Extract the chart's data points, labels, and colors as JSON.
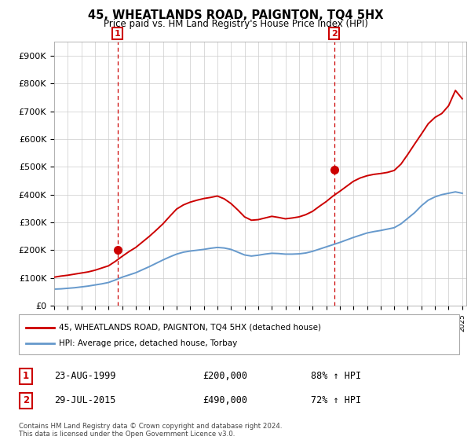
{
  "title": "45, WHEATLANDS ROAD, PAIGNTON, TQ4 5HX",
  "subtitle": "Price paid vs. HM Land Registry's House Price Index (HPI)",
  "legend_line1": "45, WHEATLANDS ROAD, PAIGNTON, TQ4 5HX (detached house)",
  "legend_line2": "HPI: Average price, detached house, Torbay",
  "footer": "Contains HM Land Registry data © Crown copyright and database right 2024.\nThis data is licensed under the Open Government Licence v3.0.",
  "sale1_date": "23-AUG-1999",
  "sale1_price": "£200,000",
  "sale1_label": "88% ↑ HPI",
  "sale2_date": "29-JUL-2015",
  "sale2_price": "£490,000",
  "sale2_label": "72% ↑ HPI",
  "red_color": "#cc0000",
  "blue_color": "#6699cc",
  "vline_color": "#cc0000",
  "grid_color": "#cccccc",
  "bg_color": "#ffffff",
  "ylim": [
    0,
    950000
  ],
  "yticks": [
    0,
    100000,
    200000,
    300000,
    400000,
    500000,
    600000,
    700000,
    800000,
    900000
  ],
  "ytick_labels": [
    "£0",
    "£100K",
    "£200K",
    "£300K",
    "£400K",
    "£500K",
    "£600K",
    "£700K",
    "£800K",
    "£900K"
  ],
  "hpi_years": [
    1995,
    1995.5,
    1996,
    1996.5,
    1997,
    1997.5,
    1998,
    1998.5,
    1999,
    1999.5,
    2000,
    2000.5,
    2001,
    2001.5,
    2002,
    2002.5,
    2003,
    2003.5,
    2004,
    2004.5,
    2005,
    2005.5,
    2006,
    2006.5,
    2007,
    2007.5,
    2008,
    2008.5,
    2009,
    2009.5,
    2010,
    2010.5,
    2011,
    2011.5,
    2012,
    2012.5,
    2013,
    2013.5,
    2014,
    2014.5,
    2015,
    2015.5,
    2016,
    2016.5,
    2017,
    2017.5,
    2018,
    2018.5,
    2019,
    2019.5,
    2020,
    2020.5,
    2021,
    2021.5,
    2022,
    2022.5,
    2023,
    2023.5,
    2024,
    2024.5,
    2025
  ],
  "hpi_values": [
    60000,
    61000,
    63000,
    65000,
    68000,
    71000,
    75000,
    79000,
    84000,
    93000,
    103000,
    111000,
    119000,
    130000,
    141000,
    153000,
    165000,
    176000,
    186000,
    193000,
    197000,
    200000,
    203000,
    207000,
    210000,
    208000,
    203000,
    193000,
    183000,
    179000,
    182000,
    186000,
    189000,
    188000,
    186000,
    186000,
    187000,
    190000,
    196000,
    204000,
    212000,
    220000,
    228000,
    237000,
    246000,
    254000,
    262000,
    267000,
    271000,
    276000,
    281000,
    295000,
    315000,
    335000,
    360000,
    380000,
    392000,
    400000,
    405000,
    410000,
    405000
  ],
  "red_years": [
    1995,
    1995.5,
    1996,
    1996.5,
    1997,
    1997.5,
    1998,
    1998.5,
    1999,
    1999.5,
    2000,
    2000.5,
    2001,
    2001.5,
    2002,
    2002.5,
    2003,
    2003.5,
    2004,
    2004.5,
    2005,
    2005.5,
    2006,
    2006.5,
    2007,
    2007.5,
    2008,
    2008.5,
    2009,
    2009.5,
    2010,
    2010.5,
    2011,
    2011.5,
    2012,
    2012.5,
    2013,
    2013.5,
    2014,
    2014.5,
    2015,
    2015.5,
    2016,
    2016.5,
    2017,
    2017.5,
    2018,
    2018.5,
    2019,
    2019.5,
    2020,
    2020.5,
    2021,
    2021.5,
    2022,
    2022.5,
    2023,
    2023.5,
    2024,
    2024.5,
    2025
  ],
  "red_values": [
    103000,
    107000,
    110000,
    114000,
    118000,
    122000,
    128000,
    136000,
    144000,
    160000,
    178000,
    195000,
    210000,
    230000,
    250000,
    272000,
    295000,
    322000,
    348000,
    363000,
    373000,
    380000,
    386000,
    390000,
    395000,
    385000,
    368000,
    345000,
    320000,
    308000,
    310000,
    316000,
    322000,
    318000,
    313000,
    316000,
    320000,
    328000,
    340000,
    358000,
    375000,
    395000,
    412000,
    430000,
    448000,
    460000,
    468000,
    473000,
    476000,
    480000,
    487000,
    510000,
    545000,
    582000,
    618000,
    655000,
    678000,
    692000,
    720000,
    775000,
    745000
  ],
  "sale1_x": 1999.65,
  "sale1_y": 200000,
  "sale2_x": 2015.58,
  "sale2_y": 490000,
  "xlim": [
    1995,
    2025.3
  ],
  "xticks": [
    1995,
    1996,
    1997,
    1998,
    1999,
    2000,
    2001,
    2002,
    2003,
    2004,
    2005,
    2006,
    2007,
    2008,
    2009,
    2010,
    2011,
    2012,
    2013,
    2014,
    2015,
    2016,
    2017,
    2018,
    2019,
    2020,
    2021,
    2022,
    2023,
    2024,
    2025
  ]
}
